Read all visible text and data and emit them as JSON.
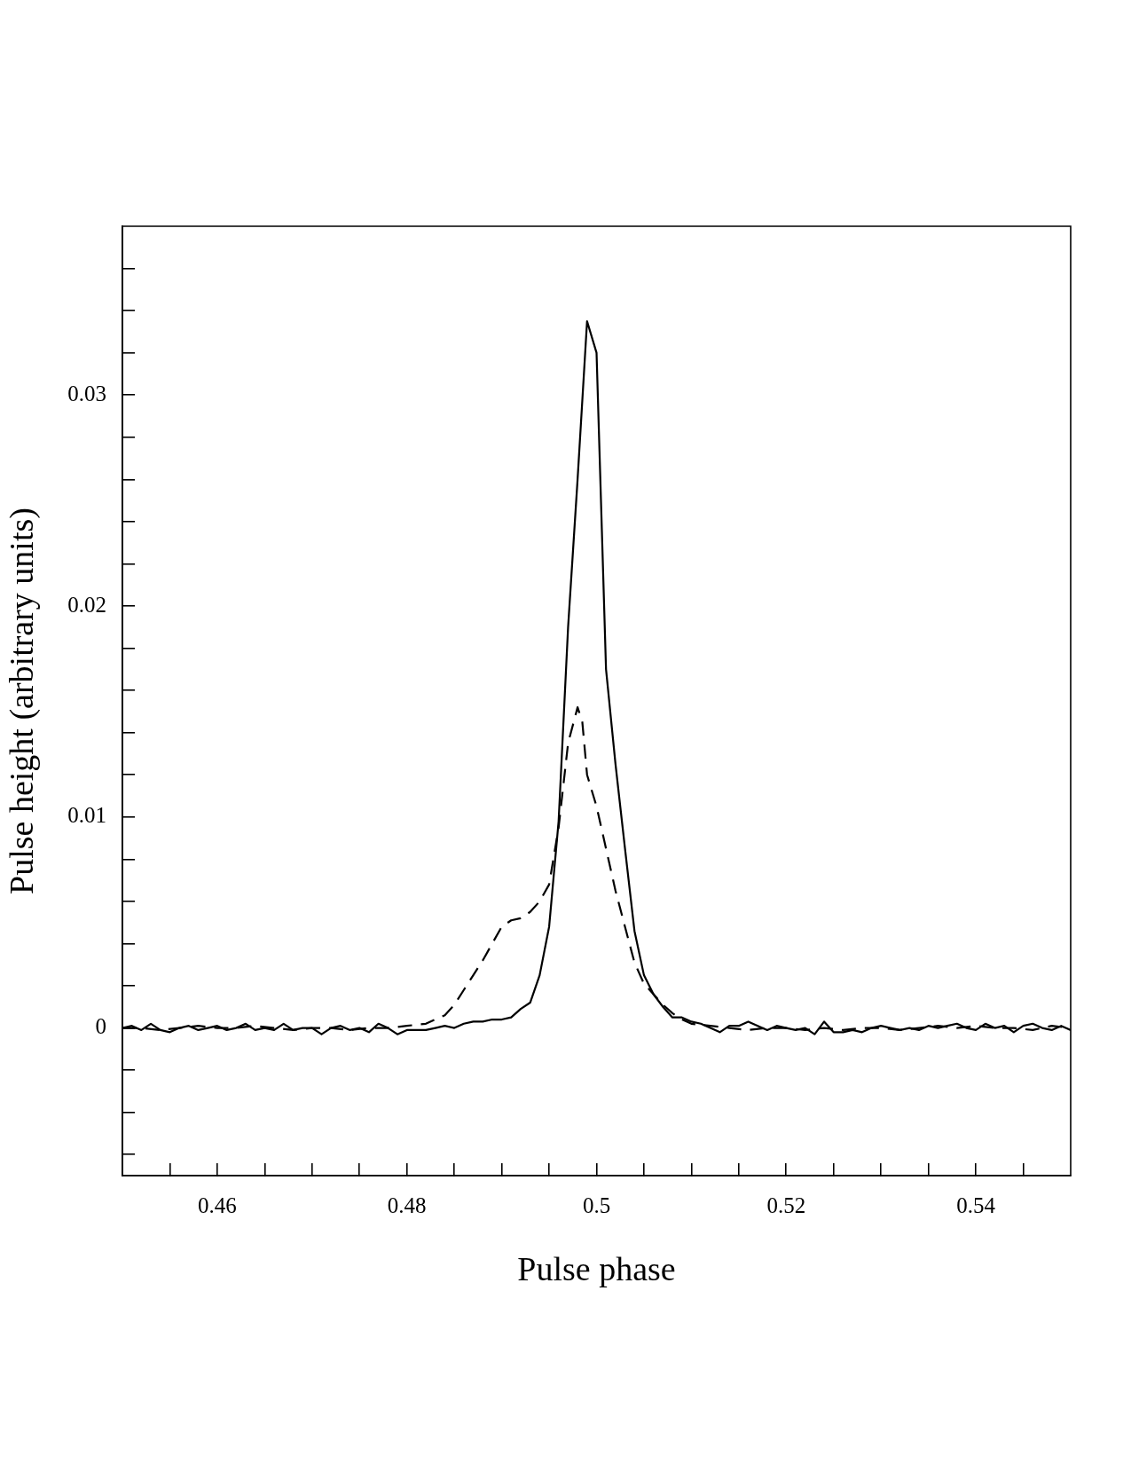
{
  "chart_data": {
    "type": "line",
    "xlabel": "Pulse phase",
    "ylabel": "Pulse height (arbitrary units)",
    "xlim": [
      0.45,
      0.55
    ],
    "ylim": [
      -0.007,
      0.038
    ],
    "xticks": [
      {
        "value": 0.455,
        "label": null
      },
      0.46,
      {
        "value": 0.465,
        "label": null
      },
      {
        "value": 0.47,
        "label": null
      },
      {
        "value": 0.475,
        "label": null
      },
      0.48,
      {
        "value": 0.485,
        "label": null
      },
      {
        "value": 0.49,
        "label": null
      },
      {
        "value": 0.495,
        "label": null
      },
      0.5,
      {
        "value": 0.505,
        "label": null
      },
      {
        "value": 0.51,
        "label": null
      },
      {
        "value": 0.515,
        "label": null
      },
      0.52,
      {
        "value": 0.525,
        "label": null
      },
      {
        "value": 0.53,
        "label": null
      },
      {
        "value": 0.535,
        "label": null
      },
      0.54,
      {
        "value": 0.545,
        "label": null
      }
    ],
    "yticks": [
      {
        "value": -0.006,
        "label": null
      },
      {
        "value": -0.004,
        "label": null
      },
      {
        "value": -0.002,
        "label": null
      },
      0,
      {
        "value": 0.002,
        "label": null
      },
      {
        "value": 0.004,
        "label": null
      },
      {
        "value": 0.006,
        "label": null
      },
      {
        "value": 0.008,
        "label": null
      },
      0.01,
      {
        "value": 0.012,
        "label": null
      },
      {
        "value": 0.014,
        "label": null
      },
      {
        "value": 0.016,
        "label": null
      },
      {
        "value": 0.018,
        "label": null
      },
      0.02,
      {
        "value": 0.022,
        "label": null
      },
      {
        "value": 0.024,
        "label": null
      },
      {
        "value": 0.026,
        "label": null
      },
      {
        "value": 0.028,
        "label": null
      },
      0.03,
      {
        "value": 0.032,
        "label": null
      },
      {
        "value": 0.034,
        "label": null
      },
      {
        "value": 0.036,
        "label": null
      }
    ],
    "grid": false,
    "legend": false,
    "series": [
      {
        "color": "#000000",
        "line_style": "solid",
        "x": [
          0.45,
          0.451,
          0.452,
          0.453,
          0.454,
          0.455,
          0.456,
          0.457,
          0.458,
          0.459,
          0.46,
          0.461,
          0.462,
          0.463,
          0.464,
          0.465,
          0.466,
          0.467,
          0.468,
          0.469,
          0.47,
          0.471,
          0.472,
          0.473,
          0.474,
          0.475,
          0.476,
          0.477,
          0.478,
          0.479,
          0.48,
          0.481,
          0.482,
          0.483,
          0.484,
          0.485,
          0.486,
          0.487,
          0.488,
          0.489,
          0.49,
          0.491,
          0.492,
          0.493,
          0.494,
          0.495,
          0.496,
          0.497,
          0.498,
          0.499,
          0.5,
          0.501,
          0.502,
          0.503,
          0.504,
          0.505,
          0.506,
          0.507,
          0.508,
          0.509,
          0.51,
          0.511,
          0.512,
          0.513,
          0.514,
          0.515,
          0.516,
          0.517,
          0.518,
          0.519,
          0.52,
          0.521,
          0.522,
          0.523,
          0.524,
          0.525,
          0.526,
          0.527,
          0.528,
          0.529,
          0.53,
          0.531,
          0.532,
          0.533,
          0.534,
          0.535,
          0.536,
          0.537,
          0.538,
          0.539,
          0.54,
          0.541,
          0.542,
          0.543,
          0.544,
          0.545,
          0.546,
          0.547,
          0.548,
          0.549,
          0.55
        ],
        "values": [
          0,
          0.0001,
          -0.0001,
          0.0002,
          -0.0001,
          -0.0002,
          0,
          0.0001,
          -0.0001,
          0,
          0.0001,
          -0.0001,
          0,
          0.0002,
          -0.0001,
          0,
          -0.0001,
          0.0002,
          -0.0001,
          0,
          0,
          -0.0003,
          0,
          0.0001,
          -0.0001,
          0,
          -0.0002,
          0.0002,
          0,
          -0.0003,
          -0.0001,
          -0.0001,
          -0.0001,
          0,
          0.0001,
          0,
          0.0002,
          0.0003,
          0.0003,
          0.0004,
          0.0004,
          0.0005,
          0.0009,
          0.0012,
          0.0025,
          0.0048,
          0.0098,
          0.019,
          0.026,
          0.0335,
          0.032,
          0.017,
          0.0125,
          0.0085,
          0.0046,
          0.0025,
          0.0016,
          0.001,
          0.0005,
          0.0005,
          0.0003,
          0.0002,
          0,
          -0.0002,
          0.0001,
          0.0001,
          0.0003,
          0.0001,
          -0.0001,
          0.0001,
          0,
          -0.0001,
          0,
          -0.0003,
          0.0003,
          -0.0002,
          -0.0002,
          -0.0001,
          -0.0002,
          0,
          0.0001,
          0,
          -0.0001,
          0,
          -0.0001,
          0.0001,
          0,
          0.0001,
          0.0002,
          0,
          -0.0001,
          0.0002,
          0,
          0.0001,
          -0.0002,
          0.0001,
          0.0002,
          0,
          -0.0001,
          0.0001,
          -0.0001
        ]
      },
      {
        "color": "#000000",
        "line_style": "dashed",
        "x": [
          0.45,
          0.452,
          0.454,
          0.456,
          0.458,
          0.46,
          0.462,
          0.464,
          0.466,
          0.468,
          0.47,
          0.472,
          0.474,
          0.476,
          0.478,
          0.48,
          0.482,
          0.483,
          0.484,
          0.485,
          0.486,
          0.487,
          0.488,
          0.489,
          0.49,
          0.491,
          0.492,
          0.493,
          0.494,
          0.495,
          0.496,
          0.497,
          0.498,
          0.4985,
          0.499,
          0.5,
          0.501,
          0.502,
          0.503,
          0.504,
          0.505,
          0.506,
          0.507,
          0.508,
          0.509,
          0.51,
          0.512,
          0.514,
          0.516,
          0.518,
          0.52,
          0.522,
          0.524,
          0.526,
          0.528,
          0.53,
          0.532,
          0.534,
          0.536,
          0.538,
          0.54,
          0.542,
          0.544,
          0.546,
          0.548,
          0.55
        ],
        "values": [
          0,
          0,
          -0.0001,
          0,
          0.0001,
          0,
          0,
          0.0001,
          0,
          -0.0001,
          0,
          0,
          -0.0001,
          0,
          0,
          0.0001,
          0.0002,
          0.0004,
          0.0006,
          0.0011,
          0.0018,
          0.0025,
          0.0032,
          0.004,
          0.0048,
          0.0051,
          0.0052,
          0.0055,
          0.006,
          0.0068,
          0.0095,
          0.0135,
          0.0152,
          0.0145,
          0.012,
          0.0105,
          0.0085,
          0.0065,
          0.0048,
          0.0031,
          0.0021,
          0.0016,
          0.0011,
          0.0007,
          0.0004,
          0.0002,
          0.0001,
          0,
          -0.0001,
          0,
          0,
          -0.0001,
          0,
          -0.0001,
          0,
          0,
          -0.0001,
          0,
          0.0001,
          0,
          0.0001,
          0,
          0,
          -0.0001,
          0.0001,
          0
        ]
      }
    ]
  }
}
